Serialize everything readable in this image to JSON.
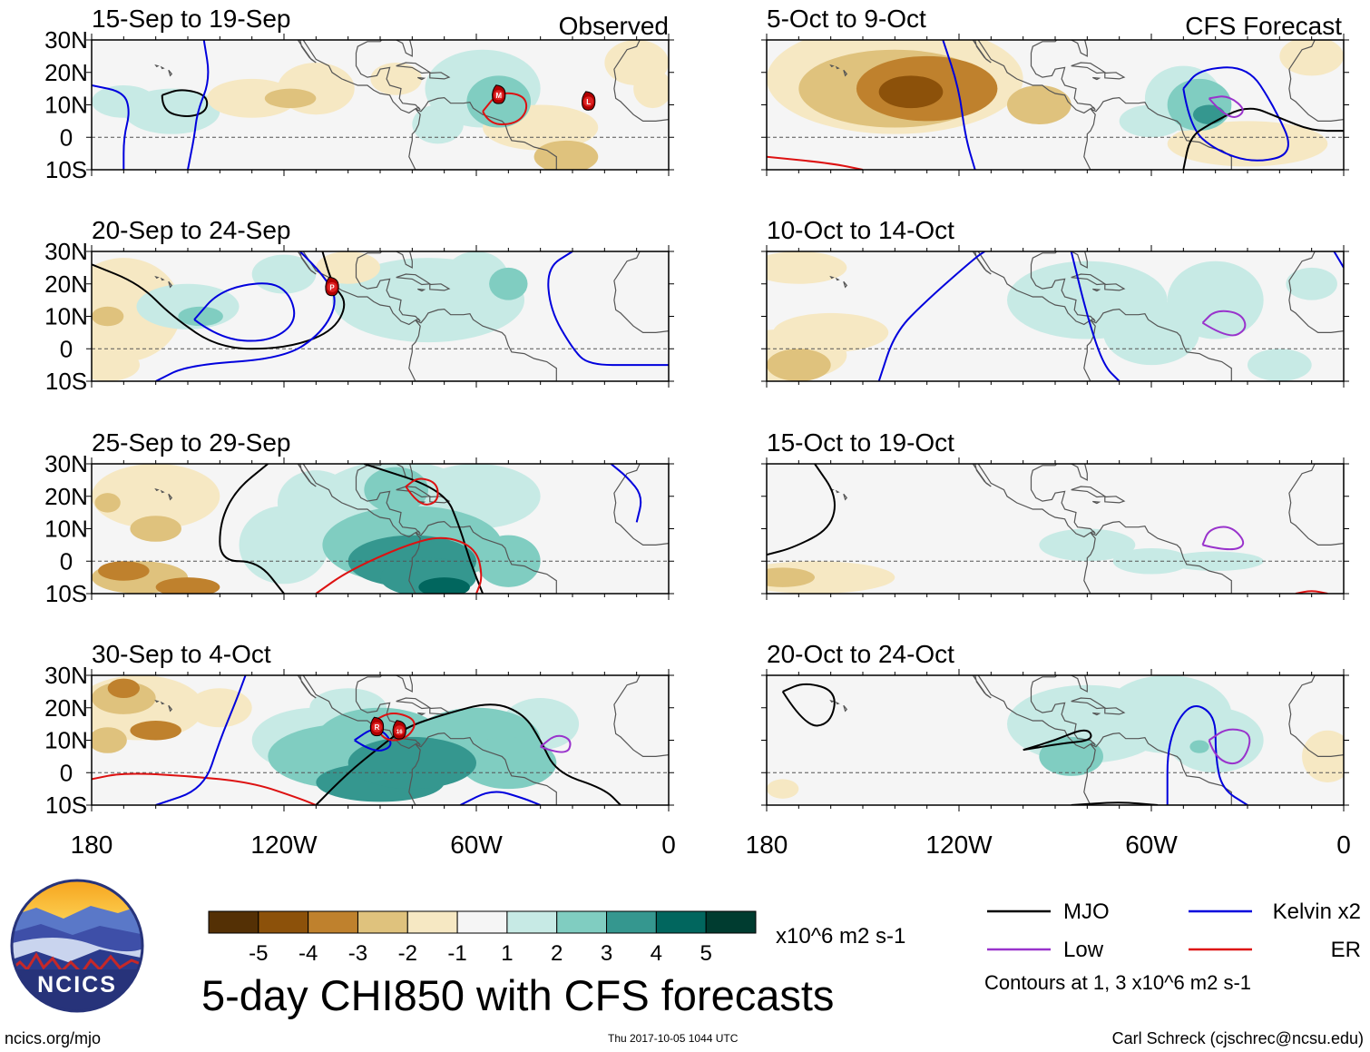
{
  "title": "5-day CHI850 with CFS forecasts",
  "header_labels": {
    "observed": "Observed",
    "forecast": "CFS Forecast"
  },
  "latitude_labels": [
    "30N",
    "20N",
    "10N",
    "0",
    "10S"
  ],
  "longitude_labels": [
    "180",
    "120W",
    "60W",
    "0"
  ],
  "panels": [
    {
      "period": "15-Sep to 19-Sep",
      "kind": "observed"
    },
    {
      "period": "20-Sep to 24-Sep",
      "kind": "observed"
    },
    {
      "period": "25-Sep to 29-Sep",
      "kind": "observed"
    },
    {
      "period": "30-Sep to 4-Oct",
      "kind": "observed"
    },
    {
      "period": "5-Oct to 9-Oct",
      "kind": "forecast"
    },
    {
      "period": "10-Oct to 14-Oct",
      "kind": "forecast"
    },
    {
      "period": "15-Oct to 19-Oct",
      "kind": "forecast"
    },
    {
      "period": "20-Oct to 24-Oct",
      "kind": "forecast"
    }
  ],
  "storm_markers": [
    {
      "panel": 0,
      "label": "M"
    },
    {
      "panel": 0,
      "label": "L"
    },
    {
      "panel": 1,
      "label": "P"
    },
    {
      "panel": 3,
      "label": "R"
    },
    {
      "panel": 3,
      "label": "16"
    }
  ],
  "colorbar": {
    "ticks": [
      "-5",
      "-4",
      "-3",
      "-2",
      "-1",
      "1",
      "2",
      "3",
      "4",
      "5"
    ],
    "units": "x10^6 m2 s-1",
    "colors": [
      "#543005",
      "#8c510a",
      "#bf812d",
      "#dfc27d",
      "#f6e8c3",
      "#f5f5f5",
      "#c7eae5",
      "#80cdc1",
      "#35978f",
      "#01665e",
      "#003c30"
    ]
  },
  "legend": {
    "items": [
      {
        "label": "MJO",
        "color": "#000000"
      },
      {
        "label": "Kelvin x2",
        "color": "#0000dd"
      },
      {
        "label": "Low",
        "color": "#9933cc"
      },
      {
        "label": "ER",
        "color": "#dd1111"
      }
    ],
    "note": "Contours at 1, 3 x10^6 m2 s-1"
  },
  "logo": {
    "text": "NCICS"
  },
  "footer": {
    "url": "ncics.org/mjo",
    "timestamp": "Thu 2017-10-05 1044 UTC",
    "credit": "Carl Schreck (cjschrec@ncsu.edu)"
  }
}
